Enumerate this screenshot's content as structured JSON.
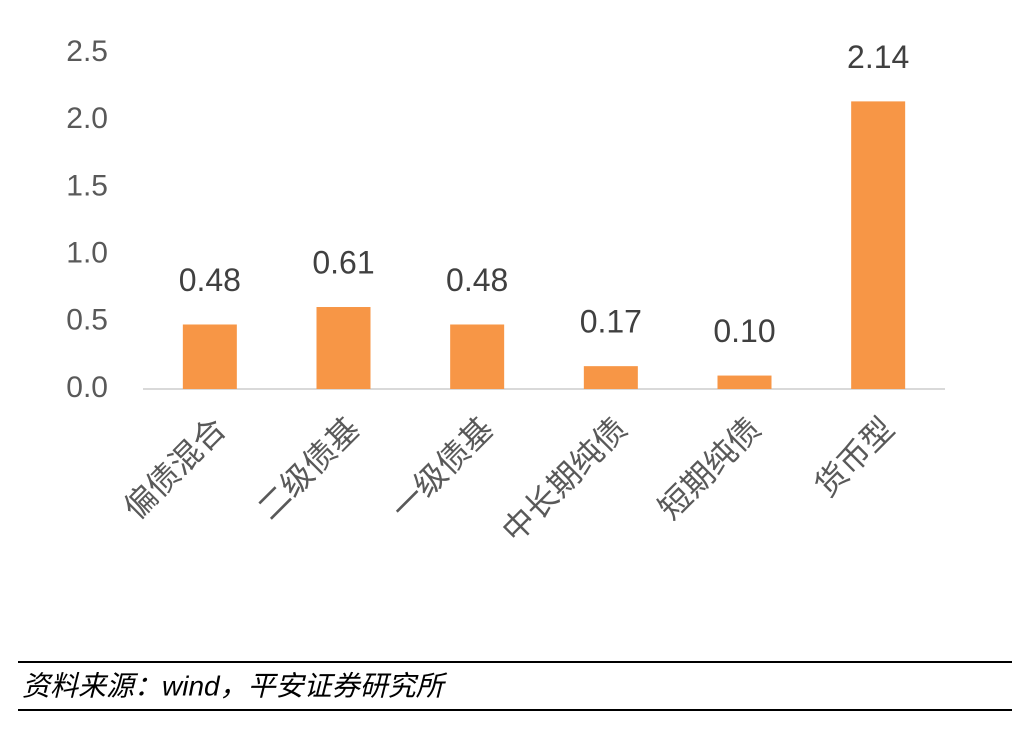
{
  "chart_data": {
    "type": "bar",
    "categories": [
      "偏债混合",
      "二级债基",
      "一级债基",
      "中长期纯债",
      "短期纯债",
      "货币型"
    ],
    "values": [
      0.48,
      0.61,
      0.48,
      0.17,
      0.1,
      2.14
    ],
    "value_labels": [
      "0.48",
      "0.61",
      "0.48",
      "0.17",
      "0.10",
      "2.14"
    ],
    "color": "#f79646",
    "ylim": [
      0,
      2.5
    ],
    "yticks": [
      {
        "value": 0,
        "label": "0.0"
      },
      {
        "value": 0.5,
        "label": "0.5"
      },
      {
        "value": 1,
        "label": "1.0"
      },
      {
        "value": 1.5,
        "label": "1.5"
      },
      {
        "value": 2,
        "label": "2.0"
      },
      {
        "value": 2.5,
        "label": "2.5"
      }
    ],
    "grid": false
  },
  "source": "资料来源：wind，平安证券研究所"
}
